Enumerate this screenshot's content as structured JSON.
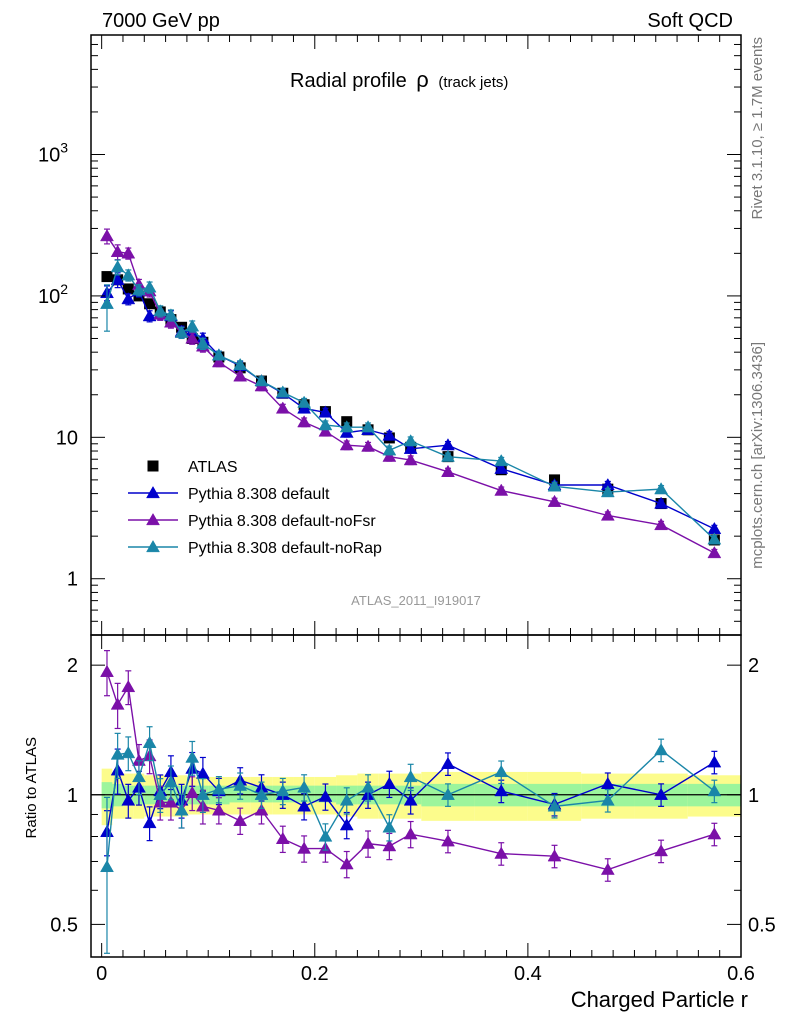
{
  "header": {
    "left": "7000 GeV pp",
    "right": "Soft QCD"
  },
  "side_labels": {
    "upper": "Rivet 3.1.10, ≥ 1.7M events",
    "lower": "mcplots.cern.ch [arXiv:1306.3436]"
  },
  "chart_data": [
    {
      "type": "scatter",
      "title": "Radial profile",
      "title_symbol": "ρ",
      "title_suffix": "(track jets)",
      "watermark": "ATLAS_2011_I919017",
      "yscale": "log",
      "ylim": [
        0.4,
        7000
      ],
      "xlim": [
        -0.01,
        0.6
      ],
      "ytick_labels": [
        "1",
        "10",
        "10",
        "10"
      ],
      "ytick_exponents": [
        "",
        "",
        "2",
        "3"
      ],
      "legend_placement": "center-left",
      "x": [
        0.005,
        0.015,
        0.025,
        0.035,
        0.045,
        0.055,
        0.065,
        0.075,
        0.085,
        0.095,
        0.11,
        0.13,
        0.15,
        0.17,
        0.19,
        0.21,
        0.23,
        0.25,
        0.27,
        0.29,
        0.325,
        0.375,
        0.425,
        0.475,
        0.525,
        0.575
      ],
      "series": [
        {
          "name": "ATLAS",
          "color": "#000000",
          "marker": "square",
          "values": [
            137,
            130,
            112,
            100,
            88,
            77,
            68,
            60,
            50,
            47,
            37,
            31,
            25,
            20.5,
            17,
            15.2,
            12.9,
            11.3,
            9.9,
            8.5,
            7.3,
            5.9,
            5.0,
            4.3,
            3.4,
            1.88
          ]
        },
        {
          "name": "Pythia 8.308 default",
          "color": "#0000cc",
          "marker": "triangle",
          "values": [
            105,
            130,
            95,
            108,
            72,
            74,
            72,
            56,
            56,
            50,
            38,
            32,
            25,
            20.5,
            16,
            15,
            10.8,
            11.3,
            10.3,
            8.3,
            8.8,
            6.0,
            4.6,
            4.6,
            3.4,
            2.25
          ]
        },
        {
          "name": "Pythia 8.308 default-noFsr",
          "color": "#7b10a8",
          "marker": "triangle",
          "values": [
            265,
            205,
            200,
            120,
            108,
            74,
            65,
            55,
            50,
            44,
            34,
            27,
            23,
            16,
            12.8,
            11,
            8.8,
            8.6,
            7.3,
            6.9,
            5.7,
            4.2,
            3.5,
            2.8,
            2.4,
            1.52
          ]
        },
        {
          "name": "Pythia 8.308 default-noRap",
          "color": "#1a86a8",
          "marker": "triangle",
          "values": [
            88,
            160,
            140,
            110,
            115,
            78,
            73,
            55,
            61,
            46,
            38,
            32.5,
            25,
            20.8,
            17.6,
            12.2,
            11.8,
            11.8,
            8.1,
            9.4,
            7.3,
            6.8,
            4.5,
            4.1,
            4.3,
            1.9
          ]
        }
      ]
    },
    {
      "type": "scatter",
      "ylabel": "Ratio to ATLAS",
      "xlabel": "Charged Particle r",
      "yscale": "log",
      "ylim": [
        0.42,
        2.35
      ],
      "xlim": [
        -0.01,
        0.6
      ],
      "xtick_labels": [
        "0",
        "0.2",
        "0.4",
        "0.6"
      ],
      "ytick_labels": [
        "0.5",
        "1",
        "2"
      ],
      "band_colors": {
        "stat": "#9cf59c",
        "total": "#fcfc8c"
      },
      "bands": {
        "inner_lo": [
          0.93,
          0.94,
          0.95,
          0.95,
          0.95,
          0.95,
          0.95,
          0.95,
          0.95,
          0.95,
          0.95,
          0.96,
          0.96,
          0.96,
          0.96,
          0.96,
          0.95,
          0.95,
          0.95,
          0.95,
          0.94,
          0.94,
          0.94,
          0.94,
          0.94,
          0.94
        ],
        "inner_hi": [
          1.07,
          1.06,
          1.05,
          1.05,
          1.05,
          1.05,
          1.05,
          1.05,
          1.05,
          1.05,
          1.05,
          1.05,
          1.05,
          1.05,
          1.05,
          1.05,
          1.05,
          1.05,
          1.05,
          1.05,
          1.06,
          1.06,
          1.06,
          1.06,
          1.06,
          1.06
        ],
        "outer_lo": [
          0.85,
          0.88,
          0.88,
          0.88,
          0.89,
          0.89,
          0.89,
          0.89,
          0.9,
          0.9,
          0.9,
          0.9,
          0.9,
          0.9,
          0.9,
          0.9,
          0.89,
          0.88,
          0.88,
          0.88,
          0.87,
          0.87,
          0.87,
          0.88,
          0.88,
          0.89
        ],
        "outer_hi": [
          1.15,
          1.12,
          1.12,
          1.12,
          1.11,
          1.11,
          1.11,
          1.11,
          1.1,
          1.1,
          1.1,
          1.1,
          1.1,
          1.1,
          1.1,
          1.1,
          1.11,
          1.12,
          1.12,
          1.12,
          1.13,
          1.13,
          1.13,
          1.12,
          1.12,
          1.11
        ]
      },
      "x": [
        0.005,
        0.015,
        0.025,
        0.035,
        0.045,
        0.055,
        0.065,
        0.075,
        0.085,
        0.095,
        0.11,
        0.13,
        0.15,
        0.17,
        0.19,
        0.21,
        0.23,
        0.25,
        0.27,
        0.29,
        0.325,
        0.375,
        0.425,
        0.475,
        0.525,
        0.575
      ],
      "series": [
        {
          "name": "Pythia 8.308 default",
          "color": "#0000cc",
          "values": [
            0.82,
            1.14,
            0.97,
            1.04,
            0.86,
            1.02,
            1.13,
            0.97,
            1.15,
            1.12,
            1.02,
            1.08,
            1.04,
            1.0,
            0.94,
            0.99,
            0.85,
            1.0,
            1.06,
            0.97,
            1.18,
            1.02,
            0.95,
            1.06,
            1.0,
            1.19
          ]
        },
        {
          "name": "Pythia 8.308 default-noFsr",
          "color": "#7b10a8",
          "values": [
            1.93,
            1.62,
            1.78,
            1.2,
            1.23,
            0.96,
            0.96,
            0.92,
            1.01,
            0.94,
            0.92,
            0.87,
            0.92,
            0.79,
            0.75,
            0.75,
            0.69,
            0.77,
            0.76,
            0.81,
            0.78,
            0.73,
            0.72,
            0.67,
            0.74,
            0.81
          ]
        },
        {
          "name": "Pythia 8.308 default-noRap",
          "color": "#1a86a8",
          "values": [
            0.68,
            1.24,
            1.25,
            1.1,
            1.32,
            1.0,
            1.07,
            0.92,
            1.22,
            1.0,
            1.03,
            1.05,
            1.0,
            1.02,
            1.04,
            0.8,
            0.97,
            1.04,
            0.84,
            1.1,
            1.0,
            1.13,
            0.94,
            0.97,
            1.27,
            1.02
          ]
        }
      ]
    }
  ]
}
